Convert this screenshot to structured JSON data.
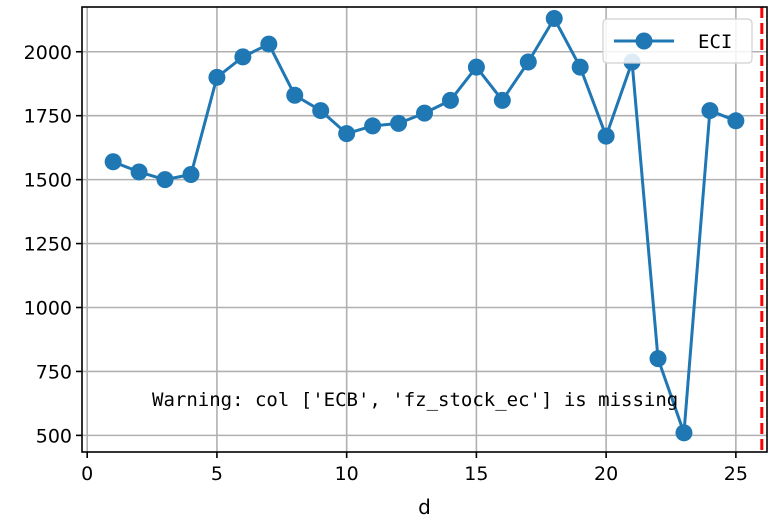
{
  "chart_data": {
    "type": "line",
    "title": "",
    "xlabel": "d",
    "ylabel": "",
    "xlim": [
      -0.2,
      26.2
    ],
    "ylim": [
      435,
      2175
    ],
    "x_ticks": [
      0,
      5,
      10,
      15,
      20,
      25
    ],
    "y_ticks": [
      500,
      750,
      1000,
      1250,
      1500,
      1750,
      2000
    ],
    "grid": true,
    "legend_placement": "top-right",
    "series": [
      {
        "name": "ECI",
        "color": "#1f77b4",
        "marker": "circle",
        "x": [
          1,
          2,
          3,
          4,
          5,
          6,
          7,
          8,
          9,
          10,
          11,
          12,
          13,
          14,
          15,
          16,
          17,
          18,
          19,
          20,
          21,
          22,
          23,
          24,
          25
        ],
        "y": [
          1570,
          1530,
          1500,
          1520,
          1900,
          1980,
          2030,
          1830,
          1770,
          1680,
          1710,
          1720,
          1760,
          1810,
          1940,
          1810,
          1960,
          2130,
          1940,
          1670,
          1960,
          800,
          510,
          1770,
          1730
        ]
      }
    ],
    "vline": {
      "x": 26.0,
      "color": "#ff0000",
      "style": "dashed"
    },
    "annotation": {
      "text": "Warning: col ['ECB', 'fz_stock_ec'] is missing",
      "x": 2.5,
      "y": 615
    }
  }
}
